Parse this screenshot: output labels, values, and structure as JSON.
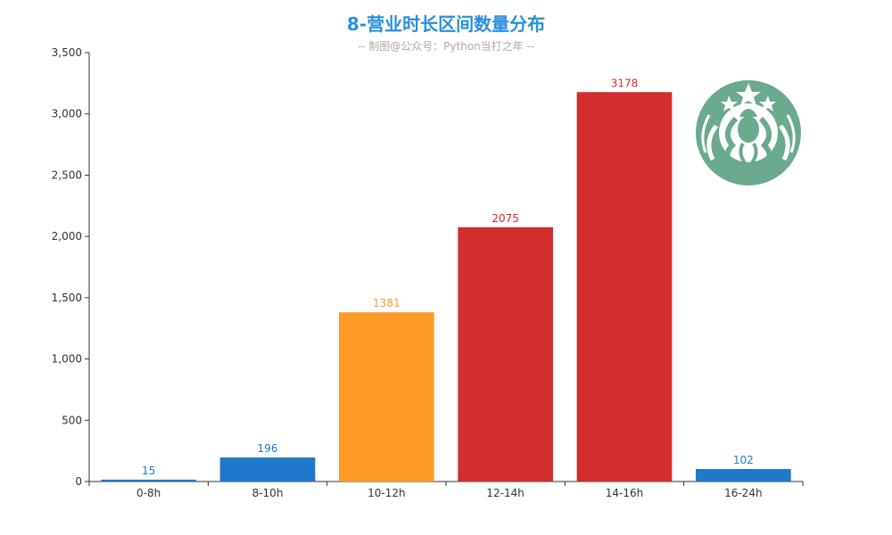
{
  "chart_data": {
    "type": "bar",
    "title": "8-营业时长区间数量分布",
    "subtitle": "-- 制图@公众号：Python当打之年 --",
    "categories": [
      "0-8h",
      "8-10h",
      "10-12h",
      "12-14h",
      "14-16h",
      "16-24h"
    ],
    "values": [
      15,
      196,
      1381,
      2075,
      3178,
      102
    ],
    "value_labels": [
      "15",
      "196",
      "1381",
      "2075",
      "3178",
      "102"
    ],
    "bar_colors": [
      "#1f78c9",
      "#1f78c9",
      "#ff9a27",
      "#d42d2d",
      "#d42d2d",
      "#1f78c9"
    ],
    "ylim": [
      0,
      3500
    ],
    "yticks": [
      0,
      500,
      1000,
      1500,
      2000,
      2500,
      3000,
      3500
    ],
    "ytick_labels": [
      "0",
      "500",
      "1,000",
      "1,500",
      "2,000",
      "2,500",
      "3,000",
      "3,500"
    ],
    "grid": false,
    "logo_icon": "starbucks-siren-logo",
    "logo_color": "#6aaa8f"
  }
}
